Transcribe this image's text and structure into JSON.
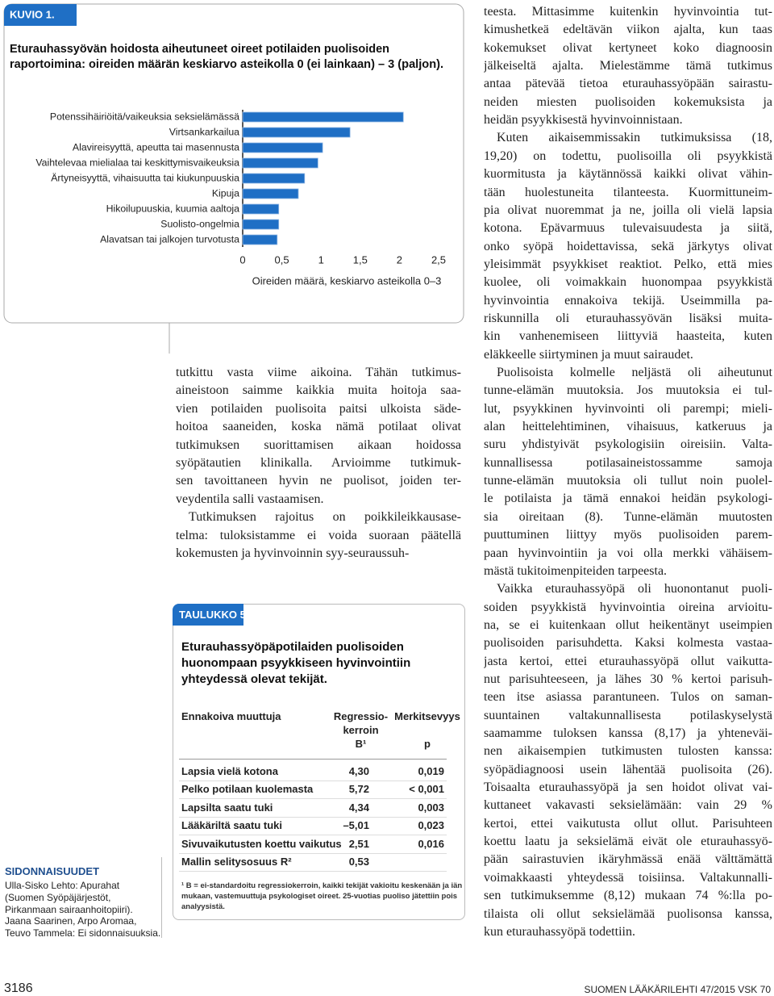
{
  "figure": {
    "label": "KUVIO 1."
  },
  "chart_data": {
    "type": "bar",
    "orientation": "horizontal",
    "title": [
      "Eturauhassyövän hoidosta aiheutuneet oireet potilaiden puolisoiden",
      "raportoimina: oireiden määrän keskiarvo asteikolla 0 (ei lainkaan) – 3 (paljon)."
    ],
    "categories": [
      "Potenssihäiriöitä/vaikeuksia seksielämässä",
      "Virtsankarkailua",
      "Alavireisyyttä, apeutta tai masennusta",
      "Vaihtelevaa mielialaa tai keskittymisvaikeuksia",
      "Ärtyneisyyttä, vihaisuutta tai kiukunpuuskia",
      "Kipuja",
      "Hikoilupuuskia, kuumia aaltoja",
      "Suolisto-ongelmia",
      "Alavatsan tai jalkojen turvotusta"
    ],
    "values": [
      2.05,
      1.37,
      1.02,
      0.96,
      0.79,
      0.71,
      0.46,
      0.46,
      0.44
    ],
    "color": "#1f6fc5",
    "xlabel": "Oireiden määrä, keskiarvo asteikolla 0–3",
    "xlim": [
      0,
      2.5
    ],
    "xticks": [
      0,
      {
        "value": 0.5,
        "label": "0,5"
      },
      1,
      {
        "value": 1.5,
        "label": "1,5"
      },
      2,
      {
        "value": 2.5,
        "label": "2,5"
      }
    ],
    "grid": false
  },
  "middle_column": {
    "paragraphs": [
      [
        "tutkittu vasta viime aikoina. Tähän tutkimus-",
        "aineistoon saimme kaikkia muita hoitoja saa-",
        "vien potilaiden puolisoita paitsi ulkoista säde-",
        "hoitoa saaneiden, koska nämä potilaat olivat",
        "tutkimuksen suorittamisen aikaan hoidossa",
        "syöpätautien klinikalla. Arvioimme tutkimuk-",
        "sen tavoittaneen hyvin ne puolisot, joiden ter-",
        "veydentila salli vastaamisen."
      ],
      [
        "Tutkimuksen rajoitus on poikkileikkausase-",
        "telma: tuloksistamme ei voida suoraan päätellä",
        "kokemusten ja hyvinvoinnin syy-seuraussuh-"
      ]
    ]
  },
  "right_column": {
    "paragraphs": [
      [
        "teesta. Mittasimme kuitenkin hyvinvointia tut-",
        "kimushetkeä edeltävän viikon ajalta, kun taas",
        "kokemukset olivat kertyneet koko diagnoosin",
        "jälkeiseltä ajalta. Mielestämme tämä tutkimus",
        "antaa pätevää tietoa eturauhassyöpään sairastu-",
        "neiden miesten puolisoiden kokemuksista ja",
        "heidän psyykkisestä hyvinvoinnistaan."
      ],
      [
        "Kuten aikaisemmissakin tutkimuksissa (18,",
        "19,20) on todettu, puolisoilla oli psyykkistä",
        "kuormitusta ja käytännössä kaikki olivat vähin-",
        "tään huolestuneita tilanteesta. Kuormittuneim-",
        "pia olivat nuoremmat ja ne, joilla oli vielä lapsia",
        "kotona. Epävarmuus tulevaisuudesta ja siitä,",
        "onko syöpä hoidettavissa, sekä järkytys olivat",
        "yleisimmät psyykkiset reaktiot. Pelko, että mies",
        "kuolee, oli voimakkain huonompaa psyykkistä",
        "hyvinvointia ennakoiva tekijä. Useimmilla pa-",
        "riskunnilla oli eturauhassyövän lisäksi muita-",
        "kin vanhenemiseen liittyviä haasteita, kuten",
        "eläkkeelle siirtyminen ja muut sairaudet."
      ],
      [
        "Puolisoista kolmelle neljästä oli aiheutunut",
        "tunne-elämän muutoksia. Jos muutoksia ei tul-",
        "lut, psyykkinen hyvinvointi oli parempi; mieli-",
        "alan heittelehtiminen, vihaisuus, katkeruus ja",
        "suru yhdistyivät psykologisiin oireisiin. Valta-",
        "kunnallisessa potilasaineistossamme samoja",
        "tunne-elämän muutoksia oli tullut noin puolel-",
        "le potilaista ja tämä ennakoi heidän psykologi-",
        "sia oireitaan (8). Tunne-elämän muutosten",
        "puuttuminen liittyy myös puolisoiden parem-",
        "paan hyvinvointiin ja voi olla merkki vähäisem-",
        "mästä tukitoimenpiteiden tarpeesta."
      ],
      [
        "Vaikka eturauhassyöpä oli huonontanut puoli-",
        "soiden psyykkistä hyvinvointia oireina arvioitu-",
        "na, se ei kuitenkaan ollut heikentänyt useimpien",
        "puolisoiden parisuhdetta. Kaksi kolmesta vastaa-",
        "jasta kertoi, ettei eturauhassyöpä ollut vaikutta-",
        "nut parisuhteeseen, ja lähes 30 % kertoi parisuh-",
        "teen itse asiassa parantuneen. Tulos on saman-",
        "suuntainen valtakunnallisesta potilaskyselystä",
        "saamamme tuloksen kanssa (8,17) ja yhteneväi-",
        "nen aikaisempien tutkimusten tulosten kanssa:",
        "syöpädiagnoosi usein lähentää puolisoita (26).",
        "Toisaalta eturauhassyöpä ja sen hoidot olivat vai-",
        "kuttaneet vakavasti seksielämään: vain 29 %",
        "kertoi, ettei vaikutusta ollut ollut. Parisuhteen",
        "koettu laatu ja seksielämä eivät ole eturauhassyö-",
        "pään sairastuvien ikäryhmässä enää välttämättä",
        "voimakkaasti yhteydessä toisiinsa. Valtakunnalli-",
        "sen tutkimuksemme (8,12) mukaan 74 %:lla po-",
        "tilaista oli ollut seksielämää puolisonsa kanssa,",
        "kun eturauhassyöpä todettiin."
      ]
    ]
  },
  "table": {
    "label": "TAULUKKO 5.",
    "title": [
      "Eturauhassyöpäpotilaiden puolisoiden",
      "huonompaan psyykkiseen hyvinvointiin",
      "yhteydessä olevat tekijät."
    ],
    "header": [
      [
        "Ennakoiva muuttuja"
      ],
      [
        "Regressio-",
        "kerroin",
        "B¹"
      ],
      [
        "Merkitsevyys",
        "p"
      ]
    ],
    "rows": [
      [
        "Lapsia vielä kotona",
        "4,30",
        "0,019"
      ],
      [
        "Pelko potilaan kuolemasta",
        "5,72",
        "< 0,001"
      ],
      [
        "Lapsilta saatu tuki",
        "4,34",
        "0,003"
      ],
      [
        "Lääkäriltä saatu tuki",
        "–5,01",
        "0,023"
      ],
      [
        "Sivuvaikutusten koettu vaikutus",
        "2,51",
        "0,016"
      ],
      [
        "Mallin selitysosuus R²",
        "0,53"
      ]
    ],
    "footnote": [
      "¹ B = ei-standardoitu regressiokerroin, kaikki tekijät vakioitu keskenään ja iän",
      "mukaan, vastemuuttuja psykologiset oireet. 25-vuotias puoliso jätettiin pois",
      "analyysistä."
    ]
  },
  "disclosures": {
    "heading": "SIDONNAISUUDET",
    "lines": [
      "Ulla-Sisko Lehto: Apurahat",
      "(Suomen Syöpäjärjestöt,",
      "Pirkanmaan sairaanhoitopiiri).",
      "Jaana Saarinen, Arpo Aromaa,",
      "Teuvo Tammela: Ei sidonnaisuuksia."
    ]
  },
  "footer": {
    "page": "3186",
    "journal": "SUOMEN LÄÄKÄRILEHTI 47/2015 VSK 70"
  }
}
